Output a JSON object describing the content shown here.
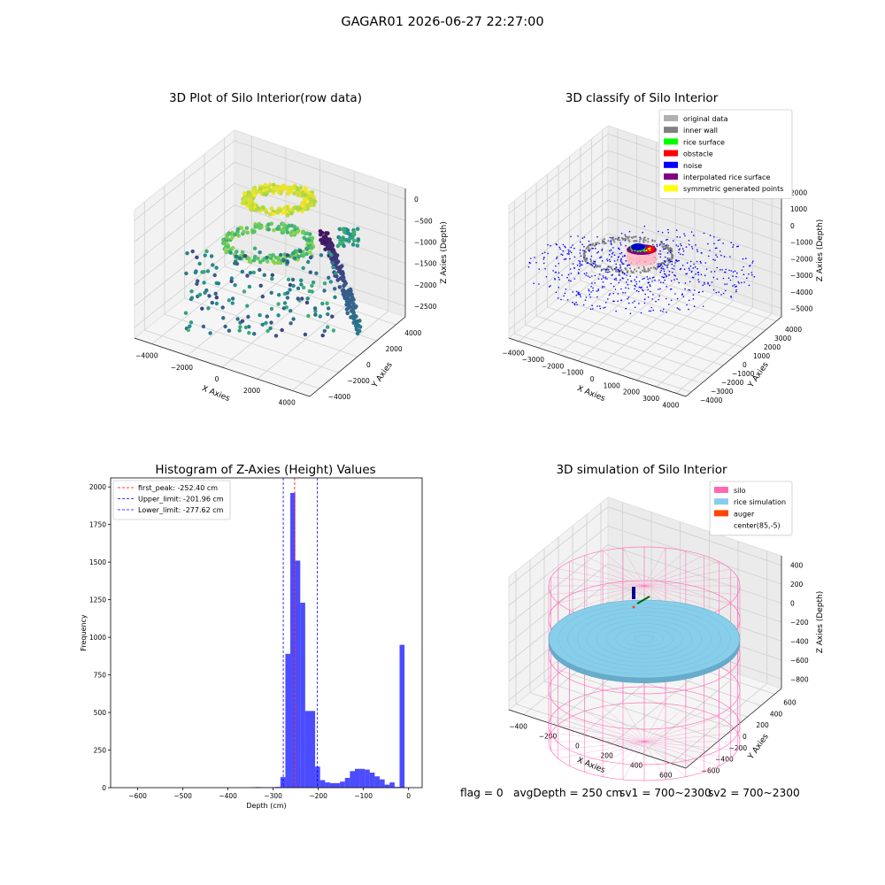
{
  "suptitle": "GAGAR01 2026-06-27 22:27:00",
  "footer": {
    "flag": "flag = 0",
    "avg_depth": "avgDepth = 250 cm",
    "sv1": "sv1 = 700~2300",
    "sv2": "sv2 = 700~2300"
  },
  "colors": {
    "histogram_bar": "#0000ff",
    "peak_line": "#ff0000",
    "limit_line": "#0000ff",
    "silo": "#ff69b4",
    "rice_simulation": "#87ceeb",
    "auger": "#ff4500",
    "inner_wall": "#808080",
    "rice_surface": "#00ff00",
    "obstacle": "#ff0000",
    "noise": "#0000ff",
    "interpolated": "#800080",
    "symmetric": "#ffff00",
    "original": "#b0b0b0"
  },
  "chart_data": [
    {
      "type": "scatter",
      "title": "3D Plot of Silo Interior(row data)",
      "xlabel": "X Axies",
      "ylabel": "Y Axies",
      "zlabel": "Z Axies (Depth)",
      "x_ticks": [
        "−4000",
        "−2000",
        "0",
        "2000",
        "4000"
      ],
      "y_ticks": [
        "4000",
        "2000",
        "0",
        "−2000",
        "−4000"
      ],
      "z_ticks": [
        "0",
        "−500",
        "−1000",
        "−1500",
        "−2000",
        "−2500"
      ],
      "xlim": [
        -4500,
        4500
      ],
      "ylim": [
        -4500,
        4500
      ],
      "zlim": [
        -2700,
        0
      ],
      "colormap": "viridis",
      "grid": true
    },
    {
      "type": "scatter",
      "title": "3D classify of Silo Interior",
      "xlabel": "X Axies",
      "ylabel": "Y Axies",
      "zlabel": "Z Axies (Depth)",
      "x_ticks": [
        "−4000",
        "−3000",
        "−2000",
        "−1000",
        "0",
        "1000",
        "2000",
        "3000",
        "4000"
      ],
      "y_ticks": [
        "4000",
        "3000",
        "2000",
        "1000",
        "0",
        "−1000",
        "−2000",
        "−3000",
        "−4000"
      ],
      "z_ticks": [
        "2000",
        "1000",
        "0",
        "−1000",
        "−2000",
        "−3000",
        "−4000",
        "−5000"
      ],
      "xlim": [
        -4200,
        4200
      ],
      "ylim": [
        -4200,
        4200
      ],
      "zlim": [
        -5200,
        2200
      ],
      "legend": [
        "original data",
        "inner wall",
        "rice surface",
        "obstacle",
        "noise",
        "interpolated rice surface",
        "symmetric generated points"
      ],
      "legend_loc": "upper right",
      "grid": true
    },
    {
      "type": "bar",
      "title": "Histogram of Z-Axies (Height) Values",
      "xlabel": "Depth (cm)",
      "ylabel": "Frequency",
      "xlim": [
        -660,
        30
      ],
      "ylim": [
        0,
        2060
      ],
      "x_ticks": [
        -600,
        -500,
        -400,
        -300,
        -200,
        -100,
        0
      ],
      "y_ticks": [
        0,
        250,
        500,
        750,
        1000,
        1250,
        1500,
        1750,
        2000
      ],
      "bins": [
        {
          "x0": -350,
          "x1": -339,
          "value": 3
        },
        {
          "x0": -339,
          "x1": -328,
          "value": 4
        },
        {
          "x0": -328,
          "x1": -317,
          "value": 3
        },
        {
          "x0": -317,
          "x1": -306,
          "value": 2
        },
        {
          "x0": -306,
          "x1": -295,
          "value": 3
        },
        {
          "x0": -295,
          "x1": -284,
          "value": 5
        },
        {
          "x0": -284,
          "x1": -273,
          "value": 70
        },
        {
          "x0": -273,
          "x1": -262,
          "value": 890
        },
        {
          "x0": -262,
          "x1": -251,
          "value": 1960
        },
        {
          "x0": -251,
          "x1": -240,
          "value": 1510
        },
        {
          "x0": -240,
          "x1": -229,
          "value": 1230
        },
        {
          "x0": -229,
          "x1": -218,
          "value": 510
        },
        {
          "x0": -218,
          "x1": -207,
          "value": 510
        },
        {
          "x0": -207,
          "x1": -196,
          "value": 140
        },
        {
          "x0": -196,
          "x1": -185,
          "value": 50
        },
        {
          "x0": -185,
          "x1": -174,
          "value": 35
        },
        {
          "x0": -174,
          "x1": -163,
          "value": 30
        },
        {
          "x0": -163,
          "x1": -152,
          "value": 30
        },
        {
          "x0": -152,
          "x1": -141,
          "value": 40
        },
        {
          "x0": -141,
          "x1": -130,
          "value": 65
        },
        {
          "x0": -130,
          "x1": -119,
          "value": 110
        },
        {
          "x0": -119,
          "x1": -108,
          "value": 125
        },
        {
          "x0": -108,
          "x1": -97,
          "value": 125
        },
        {
          "x0": -97,
          "x1": -86,
          "value": 120
        },
        {
          "x0": -86,
          "x1": -75,
          "value": 100
        },
        {
          "x0": -75,
          "x1": -64,
          "value": 75
        },
        {
          "x0": -64,
          "x1": -53,
          "value": 55
        },
        {
          "x0": -53,
          "x1": -42,
          "value": 20
        },
        {
          "x0": -42,
          "x1": -31,
          "value": 35
        },
        {
          "x0": -31,
          "x1": -20,
          "value": 5
        },
        {
          "x0": -20,
          "x1": -9,
          "value": 950
        }
      ],
      "lines": [
        {
          "label": "first_peak: -252.40 cm",
          "x": -252.4,
          "color": "#ff0000"
        },
        {
          "label": "Upper_limit: -201.96 cm",
          "x": -201.96,
          "color": "#0000ff"
        },
        {
          "label": "Lower_limit: -277.62 cm",
          "x": -277.62,
          "color": "#0000ff"
        }
      ],
      "legend_loc": "upper left"
    },
    {
      "type": "scatter",
      "title": "3D simulation of Silo Interior",
      "xlabel": "X Axies",
      "ylabel": "Y Axies",
      "zlabel": "Z Axies (Depth)",
      "x_ticks": [
        "−400",
        "−200",
        "0",
        "200",
        "400",
        "600"
      ],
      "y_ticks": [
        "600",
        "400",
        "200",
        "0",
        "−200",
        "−400",
        "−600"
      ],
      "z_ticks": [
        "400",
        "200",
        "0",
        "−200",
        "−400",
        "−600",
        "−800"
      ],
      "xlim": [
        -600,
        700
      ],
      "ylim": [
        -650,
        650
      ],
      "zlim": [
        -900,
        450
      ],
      "legend": [
        "silo",
        "rice simulation",
        "auger",
        "center(85,-5)"
      ],
      "legend_loc": "upper right",
      "grid": true
    }
  ]
}
